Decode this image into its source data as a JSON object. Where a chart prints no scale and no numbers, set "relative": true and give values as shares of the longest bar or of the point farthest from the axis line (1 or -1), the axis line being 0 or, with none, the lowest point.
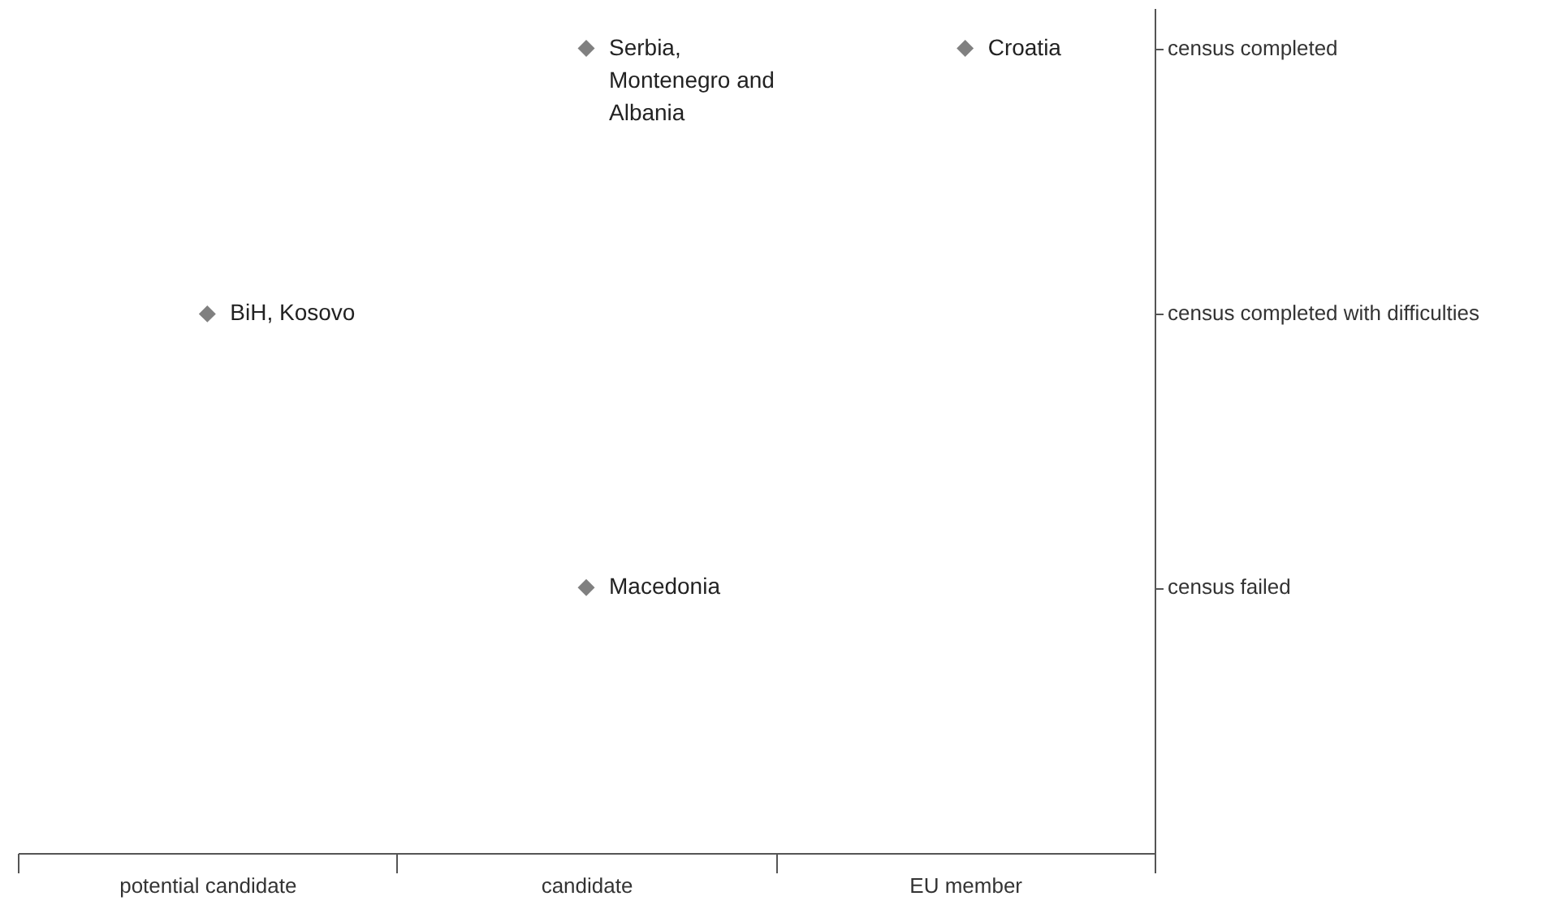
{
  "chart_data": {
    "type": "scatter",
    "relative": true,
    "categories": [
      "potential candidate",
      "candidate",
      "EU member"
    ],
    "series": [
      {
        "color": "#808080",
        "x": [
          "potential candidate",
          "candidate",
          "candidate",
          "EU member"
        ],
        "values": [
          0.67,
          1,
          0.33,
          1
        ]
      }
    ],
    "annotations": [
      {
        "text": "BiH, Kosovo",
        "x": "potential candidate",
        "y": 0.67
      },
      {
        "text": "Serbia, Montenegro and Albania",
        "x": "candidate",
        "y": 1
      },
      {
        "text": "Macedonia",
        "x": "candidate",
        "y": 0.33
      },
      {
        "text": "Croatia",
        "x": "EU member",
        "y": 1
      },
      "census completed",
      "census completed with difficulties",
      "census failed"
    ],
    "marker": "diamond",
    "grid": false
  }
}
